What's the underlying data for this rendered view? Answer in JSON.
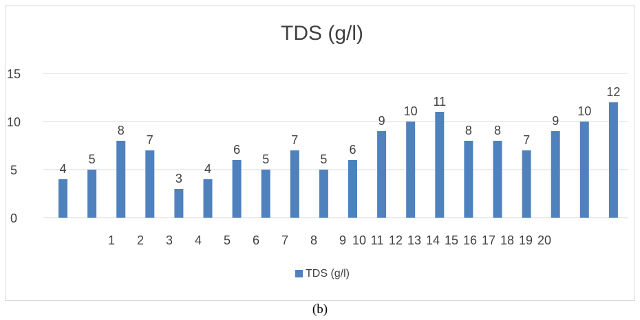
{
  "chart_data": {
    "type": "bar",
    "title": "TDS (g/l)",
    "series": [
      {
        "name": "TDS (g/l)",
        "values": [
          4,
          5,
          8,
          7,
          3,
          4,
          6,
          5,
          7,
          5,
          6,
          9,
          10,
          11,
          8,
          8,
          7,
          9,
          10,
          12
        ]
      }
    ],
    "y_ticks": [
      "0",
      "5",
      "10",
      "15"
    ],
    "x_tick_labels": [
      "1",
      "2",
      "3",
      "4",
      "5",
      "6",
      "7",
      "8",
      "9",
      "10",
      "11",
      "12",
      "13",
      "14",
      "15",
      "16",
      "17",
      "18",
      "19",
      "20"
    ],
    "ylim": [
      0,
      15
    ],
    "grid": true,
    "legend": "bottom",
    "colors": {
      "bar": "#4f81bd",
      "grid": "#d9d9d9",
      "text": "#404040"
    }
  },
  "caption": "(b)"
}
